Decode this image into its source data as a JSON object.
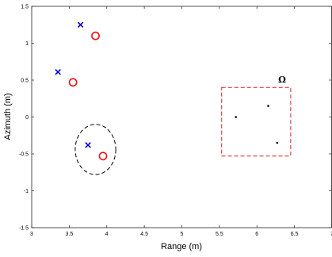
{
  "chart_data": {
    "type": "scatter",
    "xlabel": "Range (m)",
    "ylabel": "Azimuth (m)",
    "xlim": [
      3,
      7
    ],
    "ylim": [
      -1.5,
      1.5
    ],
    "xticks": [
      3,
      3.5,
      4,
      4.5,
      5,
      5.5,
      6,
      6.5,
      7
    ],
    "yticks": [
      -1.5,
      -1,
      -0.5,
      0,
      0.5,
      1,
      1.5
    ],
    "grid": false,
    "legend": "none",
    "colors": {
      "cross": "#0000cc",
      "circle": "#ee1111",
      "region": "#cc2222",
      "ellipse": "#000000",
      "points": "#000000"
    },
    "series": [
      {
        "marker": "x",
        "x": [
          3.65,
          3.35,
          3.75
        ],
        "y": [
          1.25,
          0.61,
          -0.38
        ]
      },
      {
        "marker": "o",
        "x": [
          3.85,
          3.55,
          3.95
        ],
        "y": [
          1.1,
          0.47,
          -0.53
        ]
      },
      {
        "marker": "dot",
        "x": [
          5.72,
          6.15,
          6.27
        ],
        "y": [
          0.0,
          0.15,
          -0.35
        ]
      }
    ],
    "annotations": {
      "omega_label": "Ω",
      "region": {
        "x": [
          5.53,
          6.45
        ],
        "y": [
          -0.53,
          0.4
        ]
      },
      "ellipse": {
        "cx": 3.85,
        "cy": -0.44,
        "rx": 0.27,
        "ry": 0.34
      }
    }
  }
}
